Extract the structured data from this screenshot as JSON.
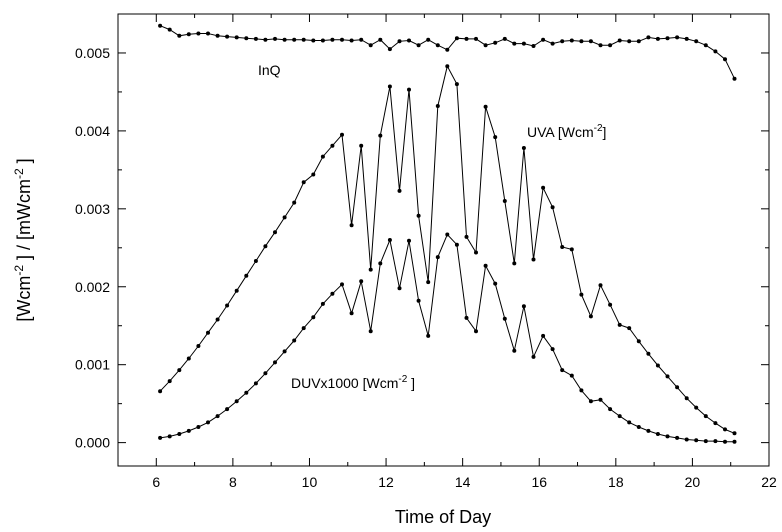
{
  "chart_data": {
    "type": "line",
    "xlabel": "Time of Day",
    "ylabel_parts": [
      "[Wcm",
      "-2",
      " ] / [mWcm",
      "-2",
      " ]"
    ],
    "xlim": [
      5,
      22
    ],
    "ylim": [
      -0.0003,
      0.0055
    ],
    "x_ticks": [
      6,
      8,
      10,
      12,
      14,
      16,
      18,
      20,
      22
    ],
    "x_tick_labels": [
      "6",
      "8",
      "10",
      "12",
      "14",
      "16",
      "18",
      "20",
      "22"
    ],
    "y_ticks": [
      0,
      0.001,
      0.002,
      0.003,
      0.004,
      0.005
    ],
    "y_tick_labels": [
      "0.000",
      "0.001",
      "0.002",
      "0.003",
      "0.004",
      "0.005"
    ],
    "grid": false,
    "series_labels": {
      "inq": "InQ",
      "uva": "UVA [Wcm",
      "uva_sup": "-2",
      "uva_end": "]",
      "duv": "DUVx1000  [Wcm",
      "duv_sup": "-2",
      "duv_end": " ]"
    },
    "series": [
      {
        "id": "inq",
        "x": [
          6.1,
          6.35,
          6.6,
          6.85,
          7.1,
          7.35,
          7.6,
          7.85,
          8.1,
          8.35,
          8.6,
          8.85,
          9.1,
          9.35,
          9.6,
          9.85,
          10.1,
          10.35,
          10.6,
          10.85,
          11.1,
          11.35,
          11.6,
          11.85,
          12.1,
          12.35,
          12.6,
          12.85,
          13.1,
          13.35,
          13.6,
          13.85,
          14.1,
          14.35,
          14.6,
          14.85,
          15.1,
          15.35,
          15.6,
          15.85,
          16.1,
          16.35,
          16.6,
          16.85,
          17.1,
          17.35,
          17.6,
          17.85,
          18.1,
          18.35,
          18.6,
          18.85,
          19.1,
          19.35,
          19.6,
          19.85,
          20.1,
          20.35,
          20.6,
          20.85,
          21.1
        ],
        "y": [
          0.00535,
          0.0053,
          0.00522,
          0.00524,
          0.00525,
          0.00525,
          0.00522,
          0.00521,
          0.0052,
          0.00519,
          0.00518,
          0.00517,
          0.00518,
          0.00517,
          0.00517,
          0.00517,
          0.00516,
          0.00516,
          0.00517,
          0.00517,
          0.00516,
          0.00517,
          0.0051,
          0.00517,
          0.00505,
          0.00515,
          0.00516,
          0.0051,
          0.00517,
          0.0051,
          0.00504,
          0.00519,
          0.00518,
          0.00518,
          0.0051,
          0.00513,
          0.00518,
          0.00512,
          0.00512,
          0.00509,
          0.00517,
          0.00512,
          0.00515,
          0.00516,
          0.00515,
          0.00515,
          0.0051,
          0.0051,
          0.00516,
          0.00515,
          0.00515,
          0.0052,
          0.00518,
          0.00519,
          0.0052,
          0.00518,
          0.00515,
          0.0051,
          0.00502,
          0.00492,
          0.00467
        ]
      },
      {
        "id": "uva",
        "x": [
          6.1,
          6.35,
          6.6,
          6.85,
          7.1,
          7.35,
          7.6,
          7.85,
          8.1,
          8.35,
          8.6,
          8.85,
          9.1,
          9.35,
          9.6,
          9.85,
          10.1,
          10.35,
          10.6,
          10.85,
          11.1,
          11.35,
          11.6,
          11.85,
          12.1,
          12.35,
          12.6,
          12.85,
          13.1,
          13.35,
          13.6,
          13.85,
          14.1,
          14.35,
          14.6,
          14.85,
          15.1,
          15.35,
          15.6,
          15.85,
          16.1,
          16.35,
          16.6,
          16.85,
          17.1,
          17.35,
          17.6,
          17.85,
          18.1,
          18.35,
          18.6,
          18.85,
          19.1,
          19.35,
          19.6,
          19.85,
          20.1,
          20.35,
          20.6,
          20.85,
          21.1
        ],
        "y": [
          0.00066,
          0.00079,
          0.00093,
          0.00108,
          0.00124,
          0.00141,
          0.00158,
          0.00176,
          0.00195,
          0.00214,
          0.00233,
          0.00252,
          0.0027,
          0.00289,
          0.00308,
          0.00334,
          0.00344,
          0.00367,
          0.00381,
          0.00395,
          0.00279,
          0.00381,
          0.00222,
          0.00394,
          0.00457,
          0.00323,
          0.00453,
          0.00291,
          0.00206,
          0.00432,
          0.00483,
          0.0046,
          0.00264,
          0.00244,
          0.00431,
          0.00392,
          0.0031,
          0.0023,
          0.00378,
          0.00235,
          0.00327,
          0.00302,
          0.00251,
          0.00248,
          0.0019,
          0.00162,
          0.00202,
          0.00177,
          0.00151,
          0.00147,
          0.0013,
          0.00114,
          0.00099,
          0.00085,
          0.00071,
          0.00057,
          0.00045,
          0.00034,
          0.00025,
          0.00017,
          0.00012
        ]
      },
      {
        "id": "duv",
        "x": [
          6.1,
          6.35,
          6.6,
          6.85,
          7.1,
          7.35,
          7.6,
          7.85,
          8.1,
          8.35,
          8.6,
          8.85,
          9.1,
          9.35,
          9.6,
          9.85,
          10.1,
          10.35,
          10.6,
          10.85,
          11.1,
          11.35,
          11.6,
          11.85,
          12.1,
          12.35,
          12.6,
          12.85,
          13.1,
          13.35,
          13.6,
          13.85,
          14.1,
          14.35,
          14.6,
          14.85,
          15.1,
          15.35,
          15.6,
          15.85,
          16.1,
          16.35,
          16.6,
          16.85,
          17.1,
          17.35,
          17.6,
          17.85,
          18.1,
          18.35,
          18.6,
          18.85,
          19.1,
          19.35,
          19.6,
          19.85,
          20.1,
          20.35,
          20.6,
          20.85,
          21.1
        ],
        "y": [
          6e-05,
          8e-05,
          0.00011,
          0.00015,
          0.0002,
          0.00026,
          0.00034,
          0.00043,
          0.00053,
          0.00064,
          0.00076,
          0.00089,
          0.00103,
          0.00117,
          0.00131,
          0.00147,
          0.00161,
          0.00178,
          0.00191,
          0.00203,
          0.00166,
          0.00207,
          0.00143,
          0.0023,
          0.0026,
          0.00198,
          0.00259,
          0.00182,
          0.00137,
          0.00238,
          0.00267,
          0.00254,
          0.0016,
          0.00143,
          0.00227,
          0.00204,
          0.00159,
          0.00118,
          0.00175,
          0.0011,
          0.00137,
          0.0012,
          0.00093,
          0.00086,
          0.00067,
          0.00053,
          0.00055,
          0.00043,
          0.00034,
          0.00026,
          0.0002,
          0.00015,
          0.00011,
          8e-05,
          6e-05,
          4e-05,
          3e-05,
          2e-05,
          2e-05,
          1e-05,
          1e-05
        ]
      }
    ]
  }
}
